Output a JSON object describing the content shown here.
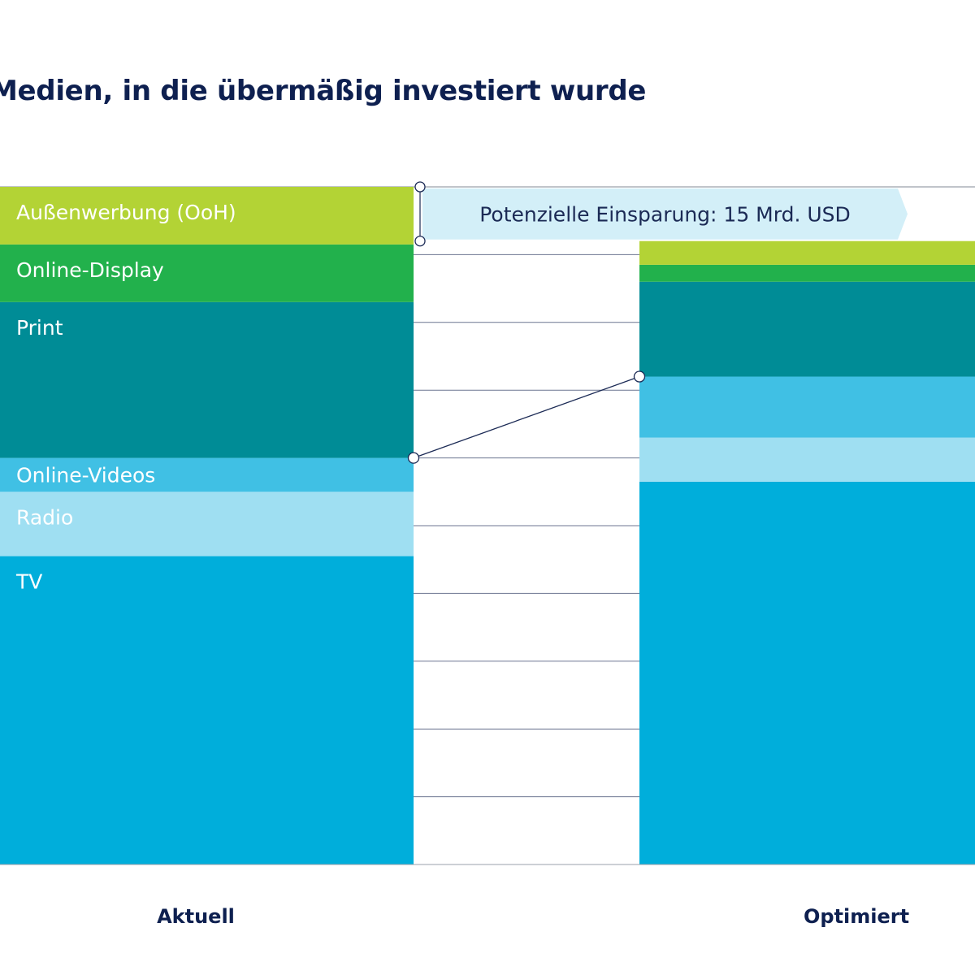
{
  "page": {
    "title": "Medien, in die übermäßig investiert wurde"
  },
  "chart_data": {
    "type": "bar",
    "stacked": true,
    "categories": [
      "Aktuell",
      "Optimiert"
    ],
    "series": [
      {
        "name": "TV",
        "color": "#00aedb",
        "values": [
          45.5,
          56.5
        ]
      },
      {
        "name": "Radio",
        "color": "#9fdff2",
        "values": [
          9.5,
          6.5
        ]
      },
      {
        "name": "Online-Videos",
        "color": "#40c0e4",
        "values": [
          5,
          9
        ]
      },
      {
        "name": "Print",
        "color": "#008c96",
        "values": [
          23,
          14
        ]
      },
      {
        "name": "Online-Display",
        "color": "#22b14c",
        "values": [
          8.5,
          2.5
        ]
      },
      {
        "name": "Außenwerbung (OoH)",
        "color": "#b3d335",
        "values": [
          8.5,
          3.5
        ]
      }
    ],
    "totals": [
      100,
      92
    ],
    "ylim": [
      0,
      100
    ],
    "gridlines": 10,
    "grid": true,
    "annotation": {
      "text": "Potenzielle Einsparung: 15 Mrd. USD",
      "color": "#d3eff8"
    },
    "connector_color": "#1b2a55"
  }
}
